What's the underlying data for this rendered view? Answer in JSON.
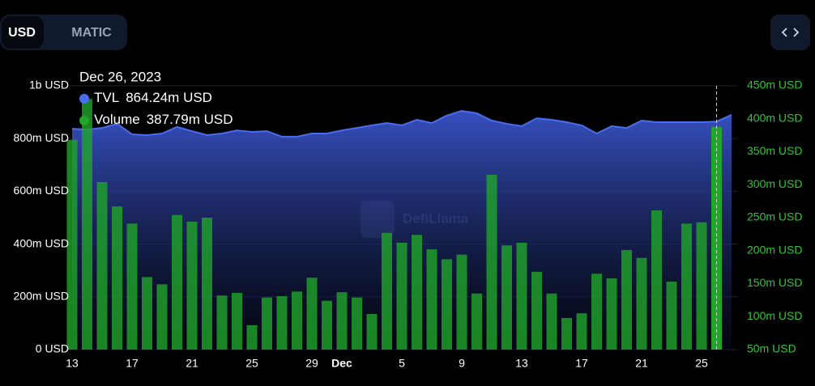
{
  "controls": {
    "currency_options": [
      "USD",
      "MATIC"
    ],
    "selected": 0
  },
  "chart_data": {
    "type": "bar-line",
    "watermark": "DefiLlama",
    "categories": [
      "13",
      null,
      null,
      null,
      "17",
      null,
      null,
      null,
      "21",
      null,
      null,
      null,
      "25",
      null,
      null,
      null,
      "29",
      null,
      "Dec",
      null,
      null,
      null,
      "5",
      null,
      null,
      null,
      "9",
      null,
      null,
      null,
      "13",
      null,
      null,
      null,
      "17",
      null,
      null,
      null,
      "21",
      null,
      null,
      null,
      "25",
      null,
      null
    ],
    "series": [
      {
        "name": "TVL",
        "type": "line",
        "color": "#4a6cf0",
        "values": [
          837,
          834,
          840,
          856,
          816,
          813,
          819,
          844,
          828,
          813,
          819,
          831,
          825,
          828,
          807,
          807,
          819,
          819,
          831,
          840,
          850,
          859,
          850,
          871,
          859,
          887,
          905,
          896,
          868,
          856,
          847,
          877,
          871,
          862,
          850,
          819,
          847,
          840,
          868,
          862,
          862,
          862,
          862,
          864.24,
          890
        ]
      },
      {
        "name": "Volume",
        "type": "bar",
        "axis": "y2",
        "color": "#21a52b",
        "values": [
          368,
          430,
          304,
          267,
          241,
          160,
          149,
          254,
          244,
          250,
          132,
          136,
          87,
          129,
          131,
          138,
          159,
          124,
          137,
          129,
          104,
          227,
          212,
          224,
          202,
          187,
          194,
          135,
          315,
          208,
          212,
          168,
          135,
          98,
          105,
          165,
          158,
          201,
          189,
          261,
          153,
          241,
          243,
          387.79,
          null
        ]
      }
    ],
    "ylim": [
      0,
      1000
    ],
    "yticks": [
      {
        "value": 0,
        "label": "0 USD"
      },
      {
        "value": 200,
        "label": "200m USD"
      },
      {
        "value": 400,
        "label": "400m USD"
      },
      {
        "value": 600,
        "label": "600m USD"
      },
      {
        "value": 800,
        "label": "800m USD"
      },
      {
        "value": 1000,
        "label": "1b USD"
      }
    ],
    "y2lim": [
      50,
      450
    ],
    "y2ticks": [
      {
        "value": 50,
        "label": "50m USD"
      },
      {
        "value": 100,
        "label": "100m USD"
      },
      {
        "value": 150,
        "label": "150m USD"
      },
      {
        "value": 200,
        "label": "200m USD"
      },
      {
        "value": 250,
        "label": "250m USD"
      },
      {
        "value": 300,
        "label": "300m USD"
      },
      {
        "value": 350,
        "label": "350m USD"
      },
      {
        "value": 400,
        "label": "400m USD"
      },
      {
        "value": 450,
        "label": "450m USD"
      }
    ],
    "grid": true,
    "tooltip": {
      "index": 43,
      "date": "Dec 26, 2023",
      "labels": [
        "864.24m USD",
        "387.79m USD"
      ]
    }
  }
}
